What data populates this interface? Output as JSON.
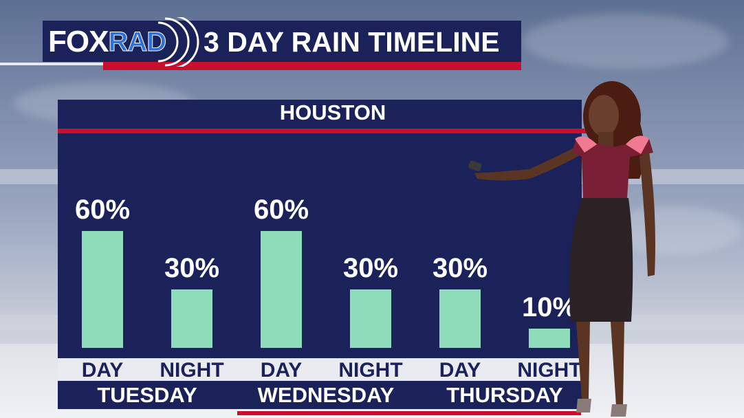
{
  "header": {
    "logo_fox": "FOX",
    "logo_rad": "RAD",
    "title": "3 DAY RAIN TIMELINE"
  },
  "location": "HOUSTON",
  "colors": {
    "panel": "#1a2259",
    "accent_red": "#c8102e",
    "bar": "#8fdcbb",
    "label_band": "#e9ebf0"
  },
  "chart_data": {
    "type": "bar",
    "title": "3 DAY RAIN TIMELINE",
    "subtitle": "HOUSTON",
    "categories": [
      "DAY",
      "NIGHT",
      "DAY",
      "NIGHT",
      "DAY",
      "NIGHT"
    ],
    "groups": [
      "TUESDAY",
      "WEDNESDAY",
      "THURSDAY"
    ],
    "values": [
      60,
      30,
      60,
      30,
      30,
      10
    ],
    "labels": [
      "60%",
      "30%",
      "60%",
      "30%",
      "30%",
      "10%"
    ],
    "ylim": [
      0,
      100
    ],
    "grid": false
  }
}
